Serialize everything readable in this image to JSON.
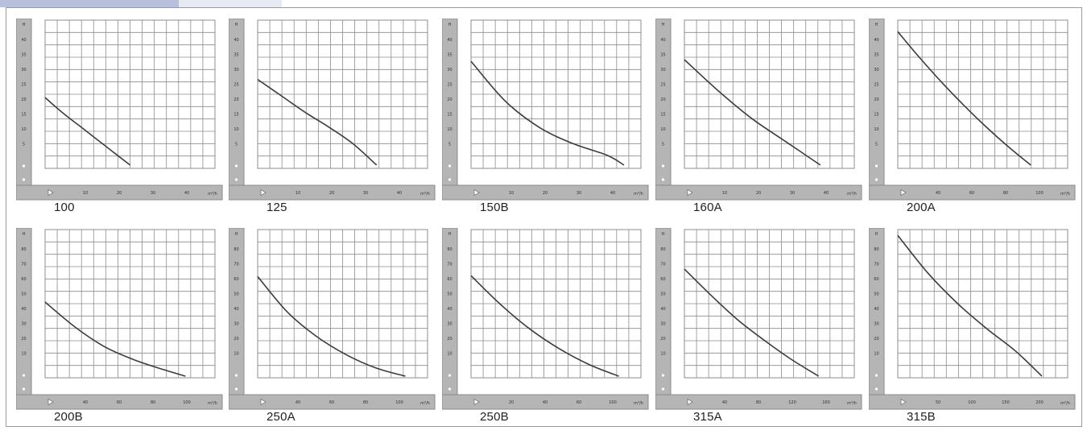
{
  "colors": {
    "frame": "#b5b5b5",
    "frame_edge": "#8a8a8a",
    "grid": "#8c8c8c",
    "curve": "#3c3c3c",
    "plot_bg": "#ffffff"
  },
  "icons": [
    "arrow-marker-icon"
  ],
  "chart_data": [
    {
      "type": "line",
      "title": "100",
      "xticks": [
        "10",
        "20",
        "30",
        "40"
      ],
      "yticks": [
        "5",
        "10",
        "15",
        "20",
        "25",
        "30",
        "35",
        "40"
      ],
      "x_unit": "m³/h",
      "ylabel": "H",
      "xlim": [
        0,
        50
      ],
      "ylim": [
        0,
        45
      ],
      "x": [
        0,
        5,
        10,
        15,
        20,
        25
      ],
      "y": [
        21.5,
        17,
        13,
        9,
        5,
        1
      ]
    },
    {
      "type": "line",
      "title": "125",
      "xticks": [
        "10",
        "20",
        "30",
        "40"
      ],
      "yticks": [
        "5",
        "10",
        "15",
        "20",
        "25",
        "30",
        "35",
        "40"
      ],
      "x_unit": "m³/h",
      "ylabel": "H",
      "xlim": [
        0,
        50
      ],
      "ylim": [
        0,
        45
      ],
      "x": [
        0,
        7,
        14,
        21,
        28,
        35
      ],
      "y": [
        27,
        22,
        17,
        12.5,
        7.5,
        1
      ]
    },
    {
      "type": "line",
      "title": "150B",
      "xticks": [
        "10",
        "20",
        "30",
        "40"
      ],
      "yticks": [
        "5",
        "10",
        "15",
        "20",
        "25",
        "30",
        "35",
        "40"
      ],
      "x_unit": "m³/h",
      "ylabel": "H",
      "xlim": [
        0,
        50
      ],
      "ylim": [
        0,
        45
      ],
      "x": [
        0,
        10,
        20,
        30,
        40,
        45
      ],
      "y": [
        32.5,
        20.5,
        12.5,
        7.5,
        4,
        1
      ]
    },
    {
      "type": "line",
      "title": "160A",
      "xticks": [
        "10",
        "20",
        "30",
        "40"
      ],
      "yticks": [
        "5",
        "10",
        "15",
        "20",
        "25",
        "30",
        "35",
        "40"
      ],
      "x_unit": "m³/h",
      "ylabel": "H",
      "xlim": [
        0,
        50
      ],
      "ylim": [
        0,
        45
      ],
      "x": [
        0,
        10,
        20,
        30,
        40
      ],
      "y": [
        33,
        23.5,
        15,
        8,
        1
      ]
    },
    {
      "type": "line",
      "title": "200A",
      "xticks": [
        "40",
        "60",
        "80",
        "100"
      ],
      "yticks": [
        "5",
        "10",
        "15",
        "20",
        "25",
        "30",
        "35",
        "40"
      ],
      "x_unit": "m³/h",
      "ylabel": "H",
      "xlim": [
        0,
        115
      ],
      "ylim": [
        0,
        45
      ],
      "x": [
        0,
        15,
        30,
        45,
        60,
        75,
        90
      ],
      "y": [
        41.5,
        33.5,
        26,
        19,
        12.5,
        6.5,
        1
      ]
    },
    {
      "type": "line",
      "title": "200B",
      "xticks": [
        "40",
        "60",
        "80",
        "100"
      ],
      "yticks": [
        "10",
        "20",
        "30",
        "40",
        "50",
        "60",
        "70",
        "80"
      ],
      "x_unit": "m³/h",
      "ylabel": "H",
      "xlim": [
        0,
        115
      ],
      "ylim": [
        0,
        90
      ],
      "x": [
        0,
        20,
        40,
        60,
        80,
        95
      ],
      "y": [
        46,
        31,
        19,
        11,
        5,
        1
      ]
    },
    {
      "type": "line",
      "title": "250A",
      "xticks": [
        "40",
        "60",
        "80",
        "100"
      ],
      "yticks": [
        "10",
        "20",
        "30",
        "40",
        "50",
        "60",
        "70",
        "80"
      ],
      "x_unit": "m³/h",
      "ylabel": "H",
      "xlim": [
        0,
        115
      ],
      "ylim": [
        0,
        90
      ],
      "x": [
        0,
        20,
        40,
        60,
        80,
        100
      ],
      "y": [
        61.5,
        40,
        25,
        14,
        6,
        1
      ]
    },
    {
      "type": "line",
      "title": "250B",
      "xticks": [
        "20",
        "40",
        "60",
        "100"
      ],
      "yticks": [
        "10",
        "20",
        "30",
        "40",
        "50",
        "60",
        "70",
        "80"
      ],
      "x_unit": "m³/h",
      "ylabel": "H",
      "xlim": [
        0,
        115
      ],
      "ylim": [
        0,
        90
      ],
      "x": [
        0,
        20,
        40,
        60,
        80,
        100
      ],
      "y": [
        62,
        44.5,
        29.5,
        17.5,
        8,
        1
      ]
    },
    {
      "type": "line",
      "title": "315A",
      "xticks": [
        "40",
        "80",
        "120",
        "160"
      ],
      "yticks": [
        "10",
        "20",
        "30",
        "40",
        "50",
        "60",
        "70",
        "80"
      ],
      "x_unit": "m³/h",
      "ylabel": "H",
      "xlim": [
        0,
        190
      ],
      "ylim": [
        0,
        90
      ],
      "x": [
        0,
        30,
        60,
        90,
        120,
        150
      ],
      "y": [
        66,
        50,
        35,
        22.5,
        11,
        1
      ]
    },
    {
      "type": "line",
      "title": "315B",
      "xticks": [
        "50",
        "100",
        "150",
        "200"
      ],
      "yticks": [
        "10",
        "20",
        "30",
        "40",
        "50",
        "60",
        "70",
        "80"
      ],
      "x_unit": "m³/h",
      "ylabel": "H",
      "xlim": [
        0,
        230
      ],
      "ylim": [
        0,
        90
      ],
      "x": [
        0,
        40,
        80,
        120,
        160,
        195
      ],
      "y": [
        86.5,
        64,
        45.5,
        30,
        16,
        1
      ]
    }
  ]
}
